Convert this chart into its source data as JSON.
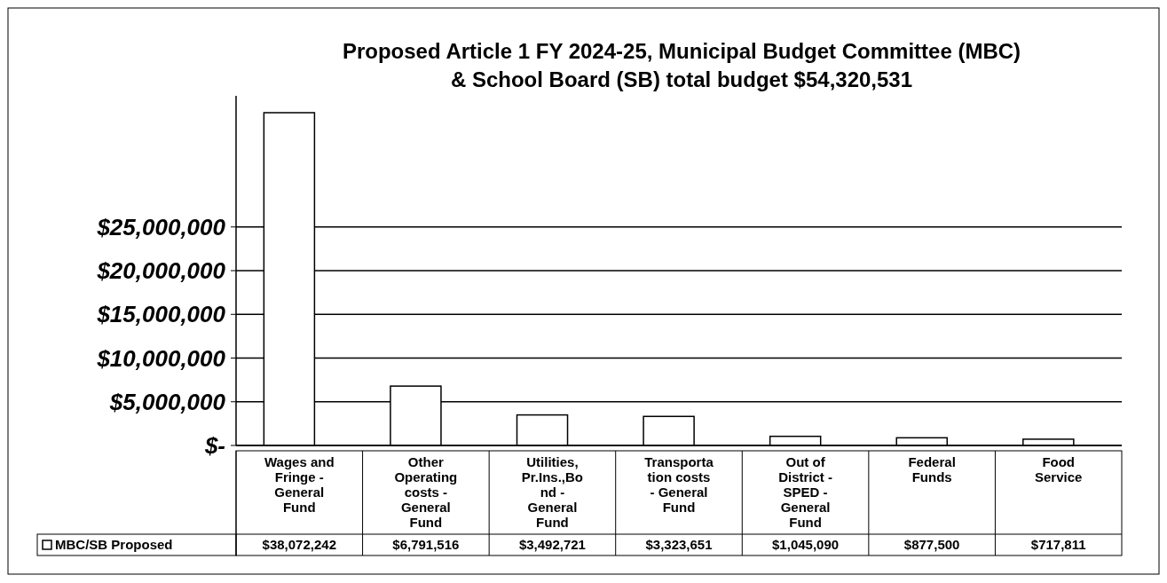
{
  "chart_data": {
    "type": "bar",
    "title": "Proposed Article 1 FY 2024-25, Municipal Budget Committee (MBC) & School Board (SB) total budget $54,320,531",
    "categories": [
      "Wages and Fringe - General Fund",
      "Other Operating costs - General Fund",
      "Utilities, Pr.Ins.,Bond - General Fund",
      "Transportation costs - General Fund",
      "Out of District - SPED - General Fund",
      "Federal Funds",
      "Food Service"
    ],
    "series": [
      {
        "name": "MBC/SB Proposed",
        "color": "#ffffff",
        "values": [
          38072242,
          6791516,
          3492721,
          3323651,
          1045090,
          877500,
          717811
        ],
        "value_labels": [
          "$38,072,242",
          "$6,791,516",
          "$3,492,721",
          "$3,323,651",
          "$1,045,090",
          "$877,500",
          "$717,811"
        ]
      }
    ],
    "ylim": [
      0,
      40000000
    ],
    "yticks": [
      {
        "value": 0,
        "label": "$-"
      },
      {
        "value": 5000000,
        "label": "$5,000,000"
      },
      {
        "value": 10000000,
        "label": "$10,000,000"
      },
      {
        "value": 15000000,
        "label": "$15,000,000"
      },
      {
        "value": 20000000,
        "label": "$20,000,000"
      },
      {
        "value": 25000000,
        "label": "$25,000,000"
      }
    ],
    "grid": "y",
    "legend": "bottom"
  }
}
